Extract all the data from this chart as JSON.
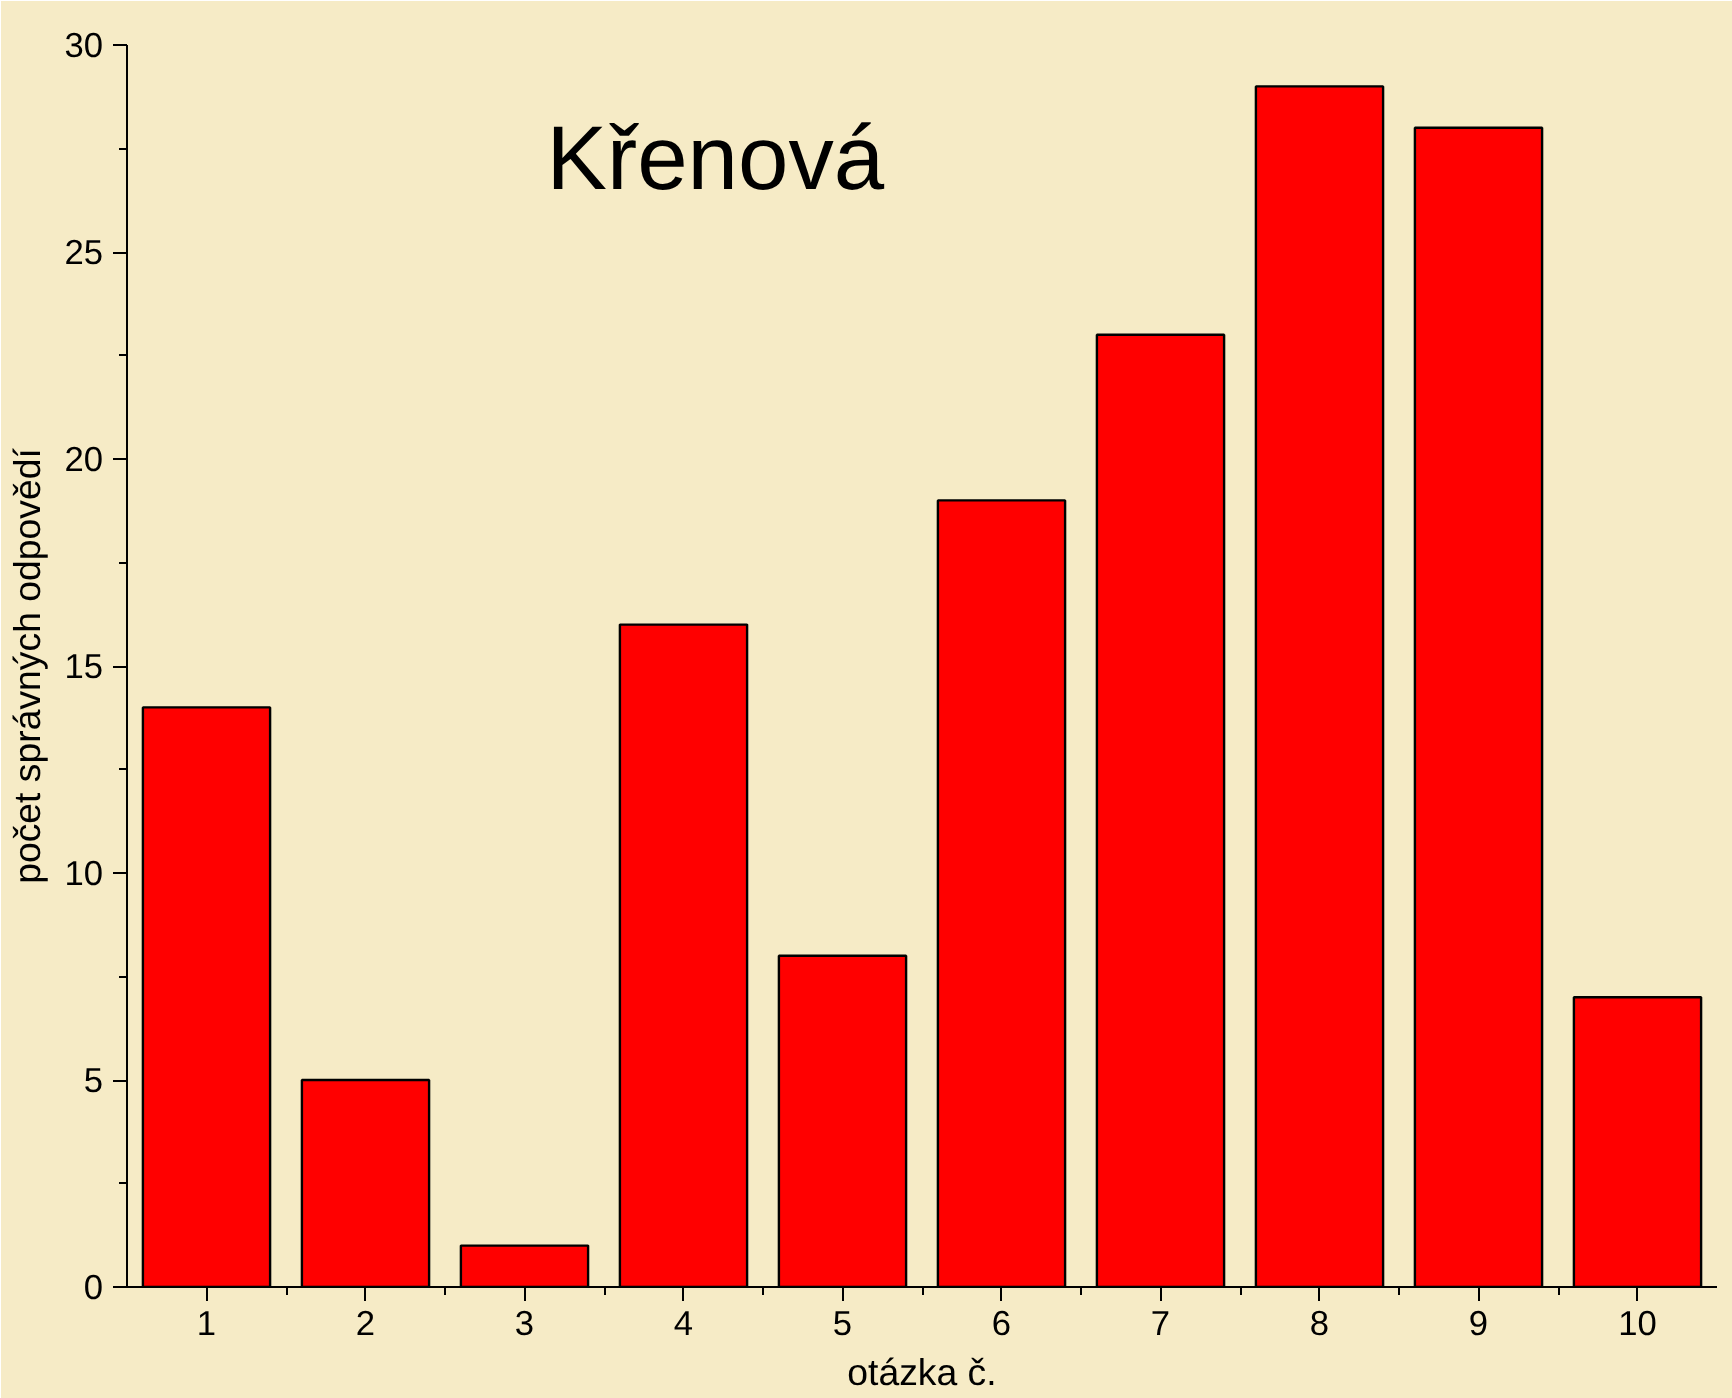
{
  "chart_data": {
    "type": "bar",
    "title": "Křenová",
    "xlabel": "otázka č.",
    "ylabel": "počet správných odpovědí",
    "categories": [
      "1",
      "2",
      "3",
      "4",
      "5",
      "6",
      "7",
      "8",
      "9",
      "10"
    ],
    "values": [
      14,
      5,
      1,
      16,
      8,
      19,
      23,
      29,
      28,
      7
    ],
    "color": "#ff0000",
    "ylim": [
      0,
      30
    ],
    "yticks": [
      0,
      5,
      10,
      15,
      20,
      25,
      30
    ]
  }
}
